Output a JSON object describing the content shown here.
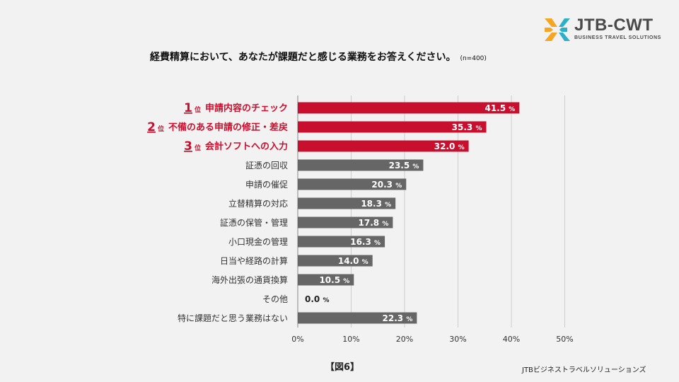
{
  "header": {
    "title": "経費精算において、あなたが課題だと感じる業務をお答えください。",
    "sample": "(n=400)"
  },
  "logo": {
    "name": "JTB-CWT",
    "tagline": "BUSINESS TRAVEL SOLUTIONS"
  },
  "figure_label": "【図6】",
  "footer": "JTBビジネストラベルソリューションズ",
  "colors": {
    "highlight": "#c8102e",
    "bar": "#666666",
    "grid": "#cccccc"
  },
  "chart_data": {
    "type": "bar",
    "orientation": "horizontal",
    "categories": [
      "申請内容のチェック",
      "不備のある申請の修正・差戻",
      "会計ソフトへの入力",
      "証憑の回収",
      "申請の催促",
      "立替精算の対応",
      "証憑の保管・管理",
      "小口現金の管理",
      "日当や経路の計算",
      "海外出張の通貨換算",
      "その他",
      "特に課題だと思う業務はない"
    ],
    "values": [
      41.5,
      35.3,
      32.0,
      23.5,
      20.3,
      18.3,
      17.8,
      16.3,
      14.0,
      10.5,
      0.0,
      22.3
    ],
    "value_labels": [
      "41.5",
      "35.3",
      "32.0",
      "23.5",
      "20.3",
      "18.3",
      "17.8",
      "16.3",
      "14.0",
      "10.5",
      "0.0",
      "22.3"
    ],
    "value_unit": "%",
    "ranks": [
      {
        "num": "1",
        "suffix": "位"
      },
      {
        "num": "2",
        "suffix": "位"
      },
      {
        "num": "3",
        "suffix": "位"
      }
    ],
    "highlight_top": 3,
    "xlim": [
      0,
      50
    ],
    "xticks": [
      "0%",
      "10%",
      "20%",
      "30%",
      "40%",
      "50%"
    ],
    "grid": true
  }
}
